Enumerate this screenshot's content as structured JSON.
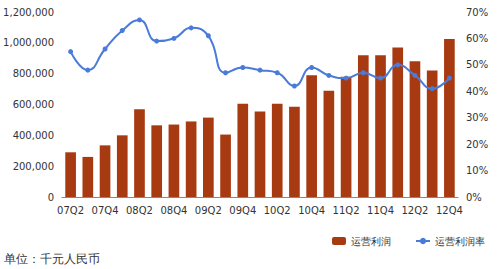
{
  "chart_data": {
    "type": "bar",
    "categories": [
      "07Q2",
      null,
      "07Q4",
      null,
      "08Q2",
      null,
      "08Q4",
      null,
      "09Q2",
      null,
      "09Q4",
      null,
      "10Q2",
      null,
      "10Q4",
      null,
      "11Q2",
      null,
      "11Q4",
      null,
      "12Q2",
      null,
      "12Q4"
    ],
    "series": [
      {
        "name": "运营利润",
        "type": "bar",
        "color": "#a83a12",
        "values": [
          290000,
          260000,
          335000,
          400000,
          570000,
          465000,
          470000,
          490000,
          515000,
          405000,
          605000,
          555000,
          605000,
          585000,
          790000,
          690000,
          780000,
          920000,
          920000,
          970000,
          880000,
          820000,
          1025000
        ]
      },
      {
        "name": "运营利润率",
        "type": "line",
        "axis": "y2",
        "color": "#4a7bd8",
        "marker": "circle",
        "line_style": "solid",
        "values": [
          55,
          48,
          56,
          63,
          67,
          59,
          60,
          64,
          61,
          47,
          49,
          48,
          47,
          42,
          49,
          46,
          45,
          47,
          45,
          50,
          46,
          41,
          45
        ]
      }
    ],
    "ylim": [
      0,
      1200000
    ],
    "yticks": [
      0,
      {
        "value": 200000,
        "label": "200,000"
      },
      {
        "value": 400000,
        "label": "400,000"
      },
      {
        "value": 600000,
        "label": "600,000"
      },
      {
        "value": 800000,
        "label": "800,000"
      },
      {
        "value": 1000000,
        "label": "1,000,000"
      },
      {
        "value": 1200000,
        "label": "1,200,000"
      }
    ],
    "y2lim": [
      0,
      70
    ],
    "y2ticks": [
      {
        "value": 0,
        "label": "0%"
      },
      {
        "value": 10,
        "label": "10%"
      },
      {
        "value": 20,
        "label": "20%"
      },
      {
        "value": 30,
        "label": "30%"
      },
      {
        "value": 40,
        "label": "40%"
      },
      {
        "value": 50,
        "label": "50%"
      },
      {
        "value": 60,
        "label": "60%"
      },
      {
        "value": 70,
        "label": "70%"
      }
    ],
    "annotations": [
      "单位：千元人民币"
    ],
    "legend": "lower right",
    "grid": false
  }
}
